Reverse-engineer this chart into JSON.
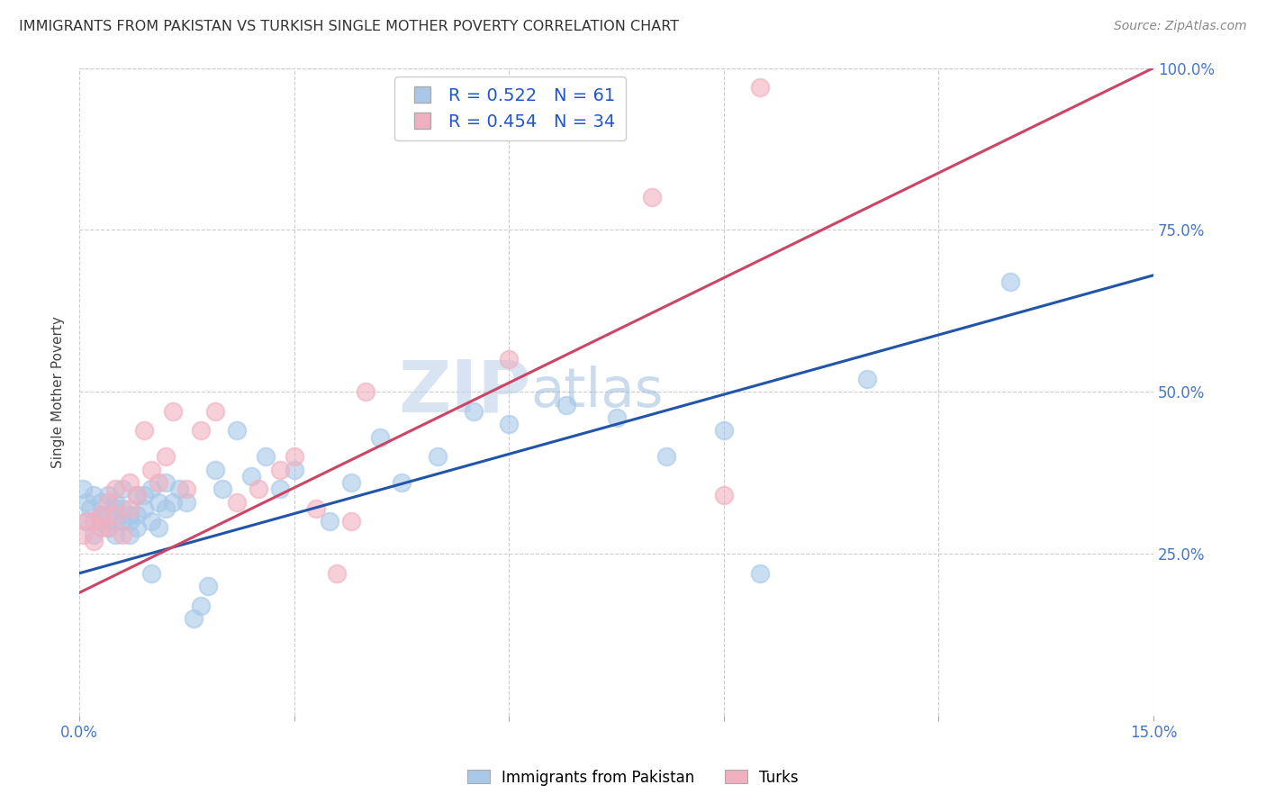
{
  "title": "IMMIGRANTS FROM PAKISTAN VS TURKISH SINGLE MOTHER POVERTY CORRELATION CHART",
  "source": "Source: ZipAtlas.com",
  "ylabel": "Single Mother Poverty",
  "xlim": [
    0.0,
    0.15
  ],
  "ylim": [
    0.0,
    1.0
  ],
  "xtick_positions": [
    0.0,
    0.03,
    0.06,
    0.09,
    0.12,
    0.15
  ],
  "xtick_labels": [
    "0.0%",
    "",
    "",
    "",
    "",
    "15.0%"
  ],
  "ytick_labels": [
    "25.0%",
    "50.0%",
    "75.0%",
    "100.0%"
  ],
  "yticks": [
    0.25,
    0.5,
    0.75,
    1.0
  ],
  "watermark_zip": "ZIP",
  "watermark_atlas": "atlas",
  "color_pakistan": "#a8c8e8",
  "color_turks": "#f0b0c0",
  "color_line_pakistan": "#2255aa",
  "color_line_turks": "#cc4466",
  "background_color": "#ffffff",
  "pakistan_x": [
    0.0005,
    0.001,
    0.001,
    0.0015,
    0.002,
    0.002,
    0.003,
    0.003,
    0.003,
    0.004,
    0.004,
    0.004,
    0.005,
    0.005,
    0.005,
    0.005,
    0.006,
    0.006,
    0.006,
    0.007,
    0.007,
    0.007,
    0.008,
    0.008,
    0.008,
    0.009,
    0.009,
    0.01,
    0.01,
    0.01,
    0.011,
    0.011,
    0.012,
    0.012,
    0.013,
    0.014,
    0.015,
    0.016,
    0.017,
    0.018,
    0.019,
    0.02,
    0.022,
    0.024,
    0.026,
    0.028,
    0.03,
    0.035,
    0.038,
    0.042,
    0.045,
    0.05,
    0.055,
    0.06,
    0.068,
    0.075,
    0.082,
    0.09,
    0.095,
    0.11,
    0.13
  ],
  "pakistan_y": [
    0.35,
    0.33,
    0.3,
    0.32,
    0.28,
    0.34,
    0.31,
    0.3,
    0.33,
    0.29,
    0.31,
    0.34,
    0.3,
    0.32,
    0.28,
    0.33,
    0.3,
    0.35,
    0.32,
    0.28,
    0.31,
    0.3,
    0.34,
    0.31,
    0.29,
    0.32,
    0.34,
    0.3,
    0.22,
    0.35,
    0.33,
    0.29,
    0.36,
    0.32,
    0.33,
    0.35,
    0.33,
    0.15,
    0.17,
    0.2,
    0.38,
    0.35,
    0.44,
    0.37,
    0.4,
    0.35,
    0.38,
    0.3,
    0.36,
    0.43,
    0.36,
    0.4,
    0.47,
    0.45,
    0.48,
    0.46,
    0.4,
    0.44,
    0.22,
    0.52,
    0.67
  ],
  "turks_x": [
    0.0005,
    0.001,
    0.002,
    0.002,
    0.003,
    0.003,
    0.004,
    0.004,
    0.005,
    0.005,
    0.006,
    0.007,
    0.007,
    0.008,
    0.009,
    0.01,
    0.011,
    0.012,
    0.013,
    0.015,
    0.017,
    0.019,
    0.022,
    0.025,
    0.028,
    0.03,
    0.033,
    0.036,
    0.038,
    0.04,
    0.06,
    0.08,
    0.09,
    0.095
  ],
  "turks_y": [
    0.28,
    0.3,
    0.27,
    0.3,
    0.29,
    0.31,
    0.33,
    0.29,
    0.31,
    0.35,
    0.28,
    0.32,
    0.36,
    0.34,
    0.44,
    0.38,
    0.36,
    0.4,
    0.47,
    0.35,
    0.44,
    0.47,
    0.33,
    0.35,
    0.38,
    0.4,
    0.32,
    0.22,
    0.3,
    0.5,
    0.55,
    0.8,
    0.34,
    0.97
  ],
  "pakistan_line_x": [
    0.0,
    0.15
  ],
  "pakistan_line_y": [
    0.22,
    0.68
  ],
  "turks_line_x": [
    0.0,
    0.15
  ],
  "turks_line_y": [
    0.19,
    1.0
  ]
}
